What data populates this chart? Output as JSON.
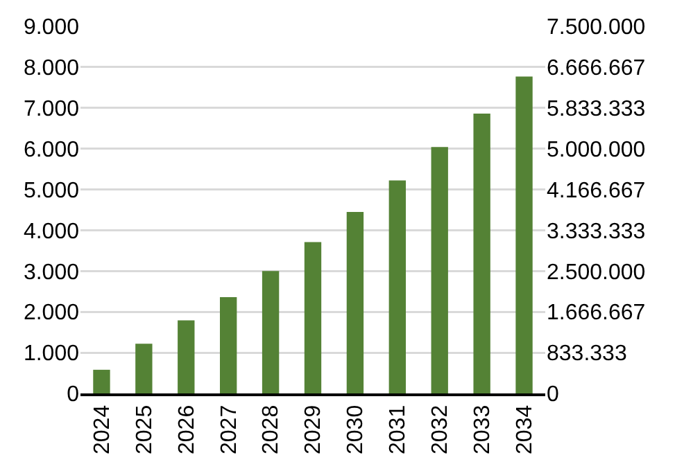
{
  "chart_data": {
    "type": "bar",
    "categories": [
      "2024",
      "2025",
      "2026",
      "2027",
      "2028",
      "2029",
      "2030",
      "2031",
      "2032",
      "2033",
      "2034"
    ],
    "values": [
      580,
      1220,
      1790,
      2360,
      3000,
      3710,
      4450,
      5220,
      6040,
      6860,
      7770
    ],
    "color": "#548235",
    "ylim": [
      0,
      9000
    ],
    "yticks": [
      {
        "value": 0,
        "label": "0"
      },
      {
        "value": 1000,
        "label": "1.000"
      },
      {
        "value": 2000,
        "label": "2.000"
      },
      {
        "value": 3000,
        "label": "3.000"
      },
      {
        "value": 4000,
        "label": "4.000"
      },
      {
        "value": 5000,
        "label": "5.000"
      },
      {
        "value": 6000,
        "label": "6.000"
      },
      {
        "value": 7000,
        "label": "7.000"
      },
      {
        "value": 8000,
        "label": "8.000"
      },
      {
        "value": 9000,
        "label": "9.000"
      }
    ],
    "y2lim": [
      0,
      7500000
    ],
    "y2ticks": [
      {
        "value": 0,
        "label": "0"
      },
      {
        "value": 833333,
        "label": "833.333"
      },
      {
        "value": 1666667,
        "label": "1.666.667"
      },
      {
        "value": 2500000,
        "label": "2.500.000"
      },
      {
        "value": 3333333,
        "label": "3.333.333"
      },
      {
        "value": 4166667,
        "label": "4.166.667"
      },
      {
        "value": 5000000,
        "label": "5.000.000"
      },
      {
        "value": 5833333,
        "label": "5.833.333"
      },
      {
        "value": 6666667,
        "label": "6.666.667"
      },
      {
        "value": 7500000,
        "label": "7.500.000"
      }
    ],
    "grid": "y"
  }
}
